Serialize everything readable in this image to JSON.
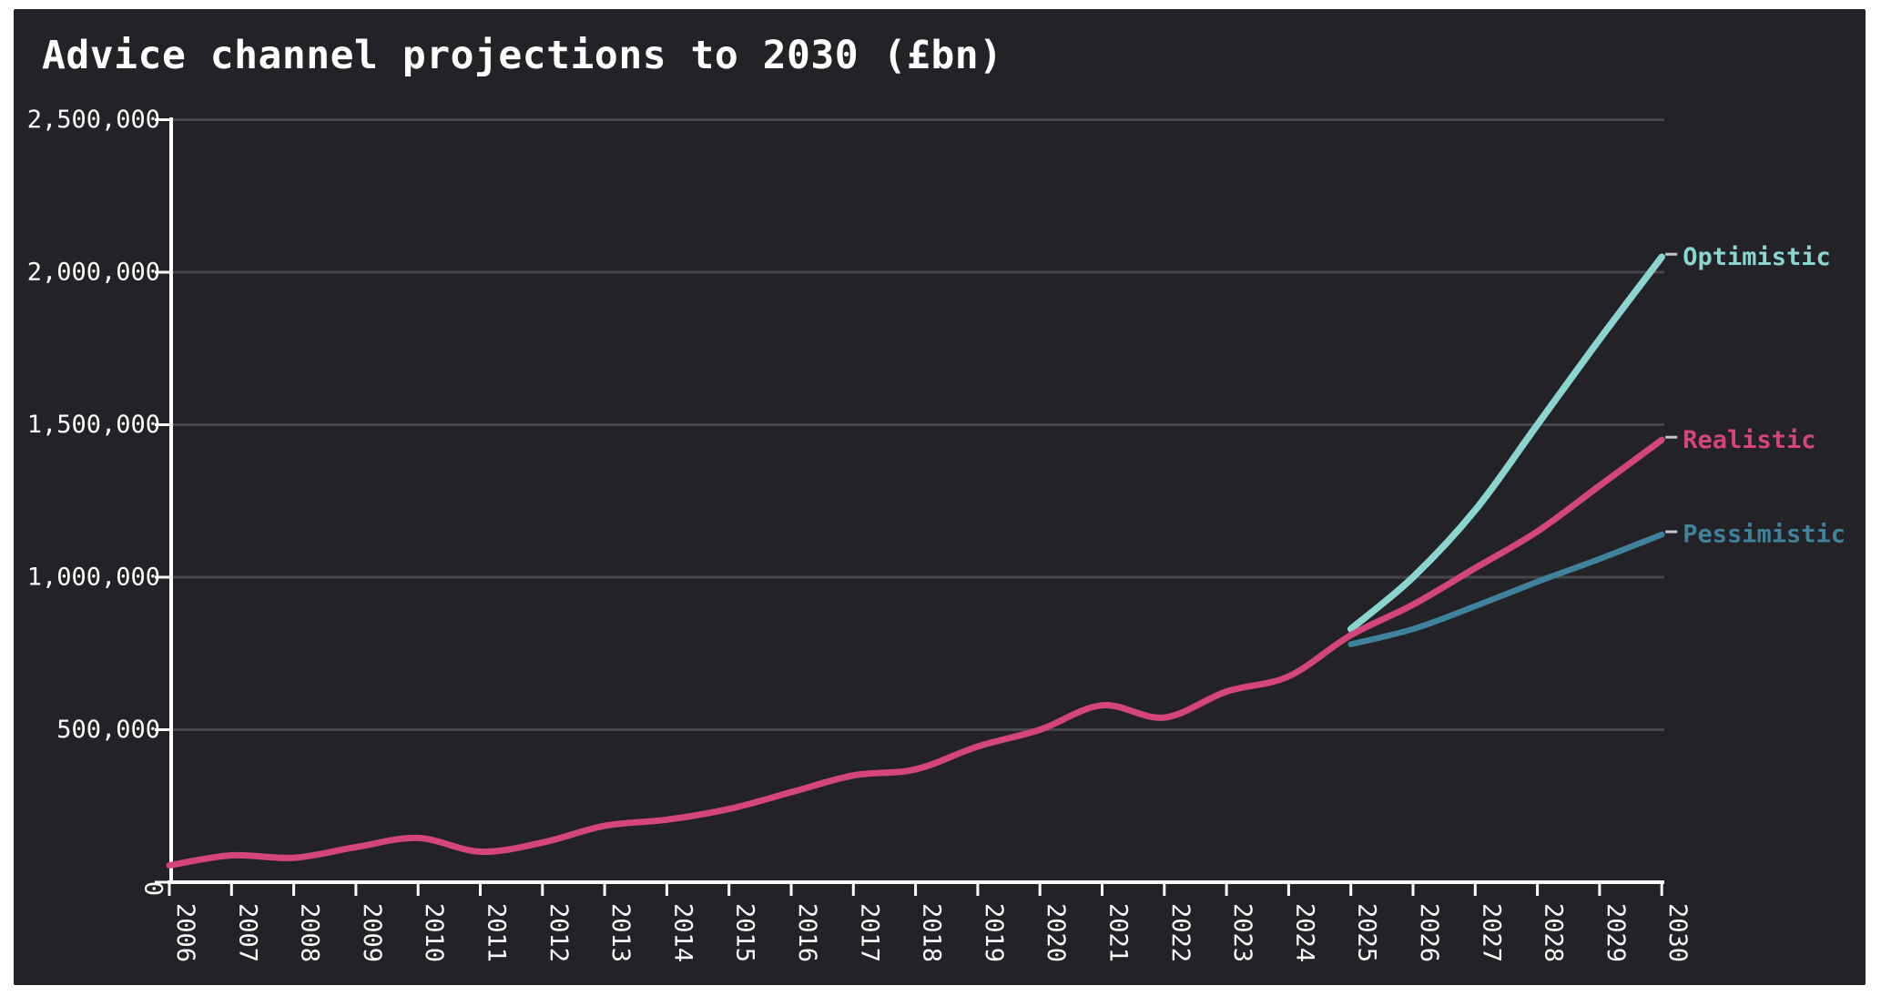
{
  "title": "Advice channel projections to 2030 (£bn)",
  "colors": {
    "page_background": "#ffffff",
    "panel_background": "#232327",
    "grid": "#46464b",
    "axis": "#ffffff",
    "tick_label": "#ffffff",
    "leader_dash": "#c2c6c8"
  },
  "chart_data": {
    "type": "line",
    "title": "Advice channel projections to 2030 (£bn)",
    "xlabel": "",
    "ylabel": "",
    "x": [
      2006,
      2007,
      2008,
      2009,
      2010,
      2011,
      2012,
      2013,
      2014,
      2015,
      2016,
      2017,
      2018,
      2019,
      2020,
      2021,
      2022,
      2023,
      2024,
      2025,
      2026,
      2027,
      2028,
      2029,
      2030
    ],
    "series": [
      {
        "name": "Pessimistic",
        "color": "#40829b",
        "line_width": 6.5,
        "values": [
          null,
          null,
          null,
          null,
          null,
          null,
          null,
          null,
          null,
          null,
          null,
          null,
          null,
          null,
          null,
          null,
          null,
          null,
          null,
          780000,
          830000,
          905000,
          985000,
          1060000,
          1140000
        ]
      },
      {
        "name": "Optimistic",
        "color": "#8bd5d1",
        "line_width": 7.5,
        "values": [
          null,
          null,
          null,
          null,
          null,
          null,
          null,
          null,
          null,
          null,
          null,
          null,
          null,
          null,
          null,
          null,
          null,
          null,
          null,
          830000,
          1000000,
          1220000,
          1500000,
          1780000,
          2050000
        ]
      },
      {
        "name": "Realistic",
        "color": "#d4457a",
        "line_width": 7,
        "values": [
          55000,
          88000,
          80000,
          115000,
          145000,
          100000,
          130000,
          185000,
          205000,
          240000,
          295000,
          350000,
          370000,
          445000,
          500000,
          580000,
          540000,
          625000,
          675000,
          810000,
          910000,
          1030000,
          1150000,
          1300000,
          1450000
        ]
      }
    ],
    "ylim": [
      0,
      2500000
    ],
    "yticks": [
      {
        "value": 0,
        "label": "0",
        "rotated": true
      },
      {
        "value": 500000,
        "label": "500,000",
        "rotated": false
      },
      {
        "value": 1000000,
        "label": "1,000,000",
        "rotated": false
      },
      {
        "value": 1500000,
        "label": "1,500,000",
        "rotated": false
      },
      {
        "value": 2000000,
        "label": "2,000,000",
        "rotated": false
      },
      {
        "value": 2500000,
        "label": "2,500,000",
        "rotated": false
      }
    ],
    "grid": "horizontal",
    "legend_position": "end-of-line-labels-right",
    "x_tick_label_rotation_deg": 90
  }
}
